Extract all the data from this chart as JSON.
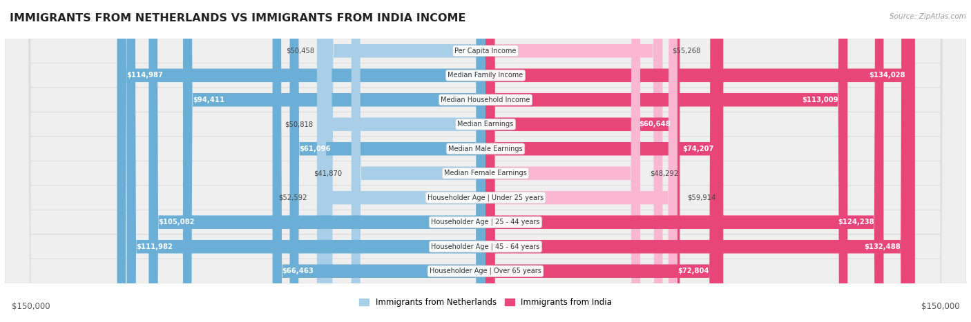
{
  "title": "IMMIGRANTS FROM NETHERLANDS VS IMMIGRANTS FROM INDIA INCOME",
  "source": "Source: ZipAtlas.com",
  "categories": [
    "Per Capita Income",
    "Median Family Income",
    "Median Household Income",
    "Median Earnings",
    "Median Male Earnings",
    "Median Female Earnings",
    "Householder Age | Under 25 years",
    "Householder Age | 25 - 44 years",
    "Householder Age | 45 - 64 years",
    "Householder Age | Over 65 years"
  ],
  "netherlands_values": [
    50458,
    114987,
    94411,
    50818,
    61096,
    41870,
    52592,
    105082,
    111982,
    66463
  ],
  "india_values": [
    55268,
    134028,
    113009,
    60648,
    74207,
    48292,
    59914,
    124238,
    132488,
    72804
  ],
  "netherlands_labels": [
    "$50,458",
    "$114,987",
    "$94,411",
    "$50,818",
    "$61,096",
    "$41,870",
    "$52,592",
    "$105,082",
    "$111,982",
    "$66,463"
  ],
  "india_labels": [
    "$55,268",
    "$134,028",
    "$113,009",
    "$60,648",
    "$74,207",
    "$48,292",
    "$59,914",
    "$124,238",
    "$132,488",
    "$72,804"
  ],
  "netherlands_color_light": "#A8CEE8",
  "netherlands_color_dark": "#6BAED6",
  "india_color_light": "#F9B8CF",
  "india_color_dark": "#E8457A",
  "inside_threshold": 60000,
  "max_value": 150000,
  "background_color": "#FFFFFF",
  "row_bg_color": "#EFEFEF",
  "row_border_color": "#DDDDDD",
  "legend_netherlands": "Immigrants from Netherlands",
  "legend_india": "Immigrants from India",
  "xlabel_left": "$150,000",
  "xlabel_right": "$150,000"
}
